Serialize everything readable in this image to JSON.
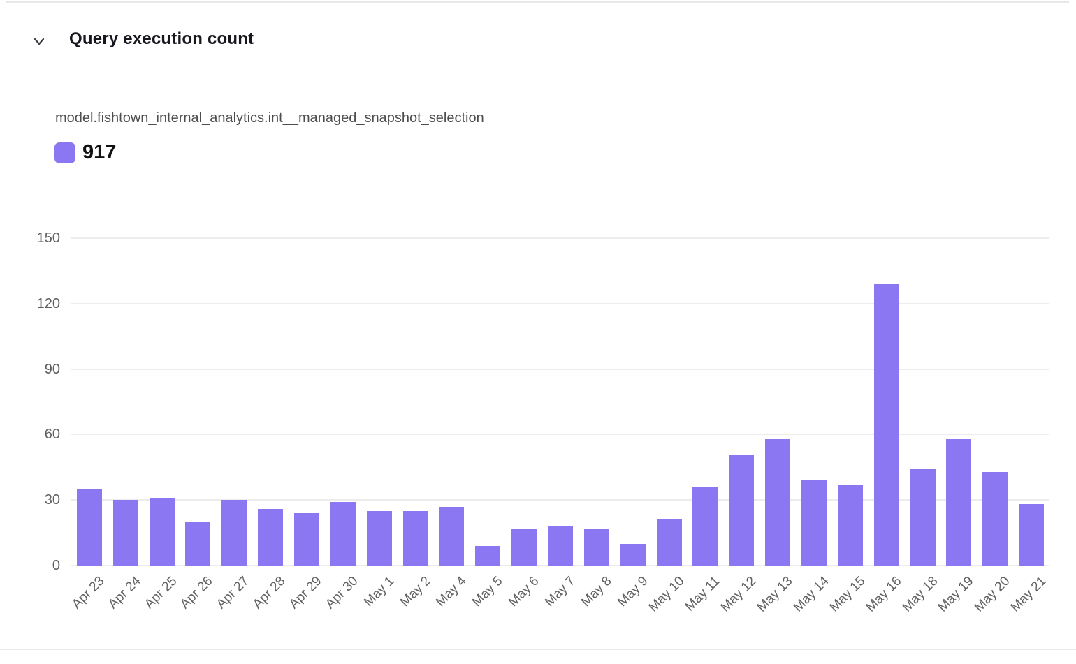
{
  "header": {
    "title": "Query execution count"
  },
  "legend": {
    "series_label": "model.fishtown_internal_analytics.int__managed_snapshot_selection",
    "total_value": "917"
  },
  "colors": {
    "bar": "#8b77f2",
    "gridline": "#ececec",
    "axis_text": "#5e5e5e",
    "divider": "#e8e8e8"
  },
  "chart_data": {
    "type": "bar",
    "title": "Query execution count",
    "categories": [
      "Apr 23",
      "Apr 24",
      "Apr 25",
      "Apr 26",
      "Apr 27",
      "Apr 28",
      "Apr 29",
      "Apr 30",
      "May 1",
      "May 2",
      "May 4",
      "May 5",
      "May 6",
      "May 7",
      "May 8",
      "May 9",
      "May 10",
      "May 11",
      "May 12",
      "May 13",
      "May 14",
      "May 15",
      "May 16",
      "May 18",
      "May 19",
      "May 20",
      "May 21"
    ],
    "series": [
      {
        "name": "model.fishtown_internal_analytics.int__managed_snapshot_selection",
        "total": 917,
        "values": [
          35,
          30,
          31,
          20,
          30,
          26,
          24,
          29,
          25,
          25,
          27,
          9,
          17,
          18,
          17,
          10,
          21,
          36,
          51,
          58,
          39,
          37,
          129,
          44,
          58,
          43,
          28
        ]
      }
    ],
    "xlabel": "",
    "ylabel": "",
    "ylim": [
      0,
      150
    ],
    "yticks": [
      0,
      30,
      60,
      90,
      120,
      150
    ],
    "grid": true,
    "legend_position": "top-left",
    "x_label_rotation": -45
  }
}
